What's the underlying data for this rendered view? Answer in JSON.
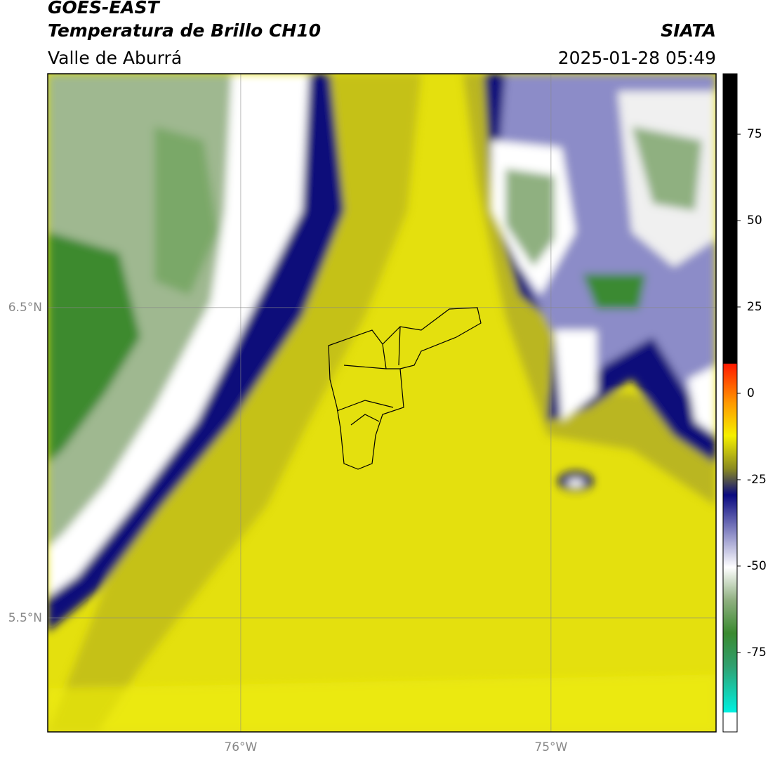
{
  "header": {
    "title": "GOES-EAST",
    "subtitle": "Temperatura de Brillo CH10",
    "region": "Valle de Aburrá",
    "source": "SIATA",
    "timestamp": "2025-01-28 05:49"
  },
  "map": {
    "xlim": [
      -76.622,
      -74.468
    ],
    "ylim": [
      5.133,
      7.253
    ],
    "xticks": [
      {
        "value": -76,
        "label": "76°W"
      },
      {
        "value": -75,
        "label": "75°W"
      }
    ],
    "yticks": [
      {
        "value": 6.5,
        "label": "6.5°N"
      },
      {
        "value": 5.5,
        "label": "5.5°N"
      }
    ],
    "grid": true
  },
  "colorbar": {
    "lim": [
      -98,
      92.5
    ],
    "ticks": [
      75,
      50,
      25,
      0,
      -25,
      -50,
      -75
    ]
  }
}
